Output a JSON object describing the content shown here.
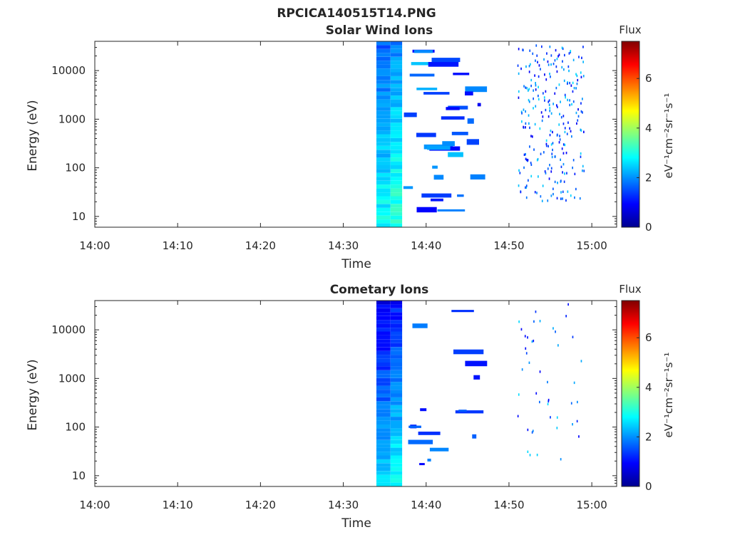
{
  "figure": {
    "title": "RPCICA140515T14.PNG"
  },
  "chart_data": [
    {
      "type": "heatmap",
      "title": "Solar Wind Ions",
      "xlabel": "Time",
      "ylabel": "Energy (eV)",
      "x_axis": {
        "range": [
          "14:00",
          "15:03"
        ],
        "tick_labels": [
          "14:00",
          "14:10",
          "14:20",
          "14:30",
          "14:40",
          "14:50",
          "15:00"
        ]
      },
      "y_axis": {
        "scale": "log",
        "range": [
          6,
          40000
        ],
        "tick_values": [
          10,
          100,
          1000,
          10000
        ],
        "tick_labels": [
          "10",
          "100",
          "1000",
          "10000"
        ]
      },
      "colorbar": {
        "title": "Flux",
        "label": "eV⁻¹cm⁻²sr⁻¹s⁻¹",
        "range": [
          0,
          7.5
        ],
        "tick_values": [
          0,
          2,
          4,
          6
        ],
        "tick_labels": [
          "0",
          "2",
          "4",
          "6"
        ],
        "colormap": "jet"
      },
      "grid": false,
      "observed_time_range": [
        "14:34",
        "14:59"
      ]
    },
    {
      "type": "heatmap",
      "title": "Cometary Ions",
      "xlabel": "Time",
      "ylabel": "Energy (eV)",
      "x_axis": {
        "range": [
          "14:00",
          "15:03"
        ],
        "tick_labels": [
          "14:00",
          "14:10",
          "14:20",
          "14:30",
          "14:40",
          "14:50",
          "15:00"
        ]
      },
      "y_axis": {
        "scale": "log",
        "range": [
          6,
          40000
        ],
        "tick_values": [
          10,
          100,
          1000,
          10000
        ],
        "tick_labels": [
          "10",
          "100",
          "1000",
          "10000"
        ]
      },
      "colorbar": {
        "title": "Flux",
        "label": "eV⁻¹cm⁻²sr⁻¹s⁻¹",
        "range": [
          0,
          7.5
        ],
        "tick_values": [
          0,
          2,
          4,
          6
        ],
        "tick_labels": [
          "0",
          "2",
          "4",
          "6"
        ],
        "colormap": "jet"
      },
      "grid": false,
      "observed_time_range": [
        "14:34",
        "14:59"
      ]
    }
  ]
}
